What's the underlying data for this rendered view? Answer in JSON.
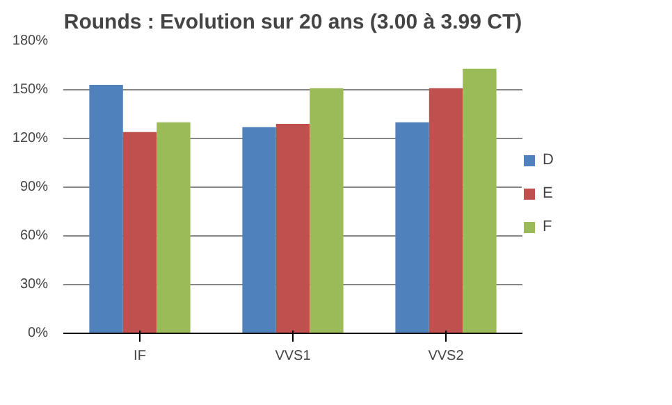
{
  "chart_data": {
    "type": "bar",
    "title": "Rounds : Evolution sur 20 ans (3.00 à 3.99 CT)",
    "categories": [
      "IF",
      "VVS1",
      "VVS2"
    ],
    "series": [
      {
        "name": "D",
        "color": "#4f81bd",
        "values": [
          153,
          127,
          130
        ]
      },
      {
        "name": "E",
        "color": "#c0504d",
        "values": [
          124,
          129,
          151
        ]
      },
      {
        "name": "F",
        "color": "#9bbb59",
        "values": [
          130,
          151,
          163
        ]
      }
    ],
    "ylim": [
      0,
      180
    ],
    "yticks": [
      {
        "value": 0,
        "label": "0%"
      },
      {
        "value": 30,
        "label": "30%"
      },
      {
        "value": 60,
        "label": "60%"
      },
      {
        "value": 90,
        "label": "90%"
      },
      {
        "value": 120,
        "label": "120%"
      },
      {
        "value": 150,
        "label": "150%"
      },
      {
        "value": 180,
        "label": "180%"
      }
    ],
    "grid": "y",
    "legend": "right"
  }
}
